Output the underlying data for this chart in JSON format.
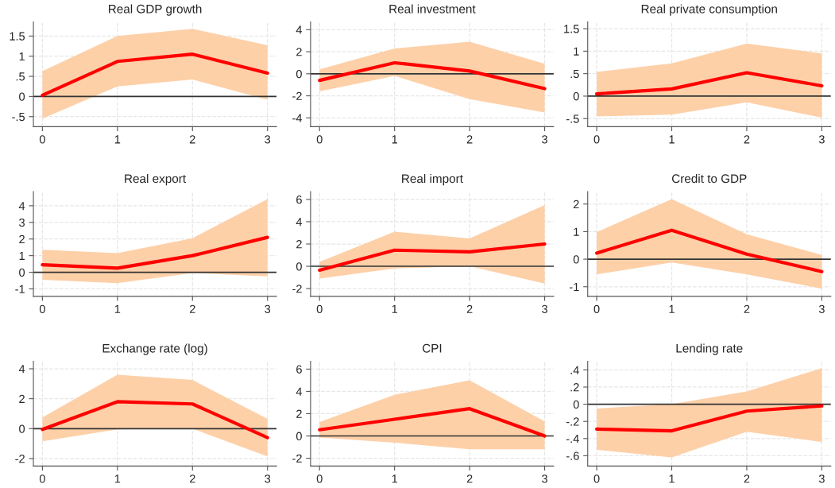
{
  "chart_data": [
    {
      "type": "line",
      "title": "Real GDP growth",
      "x": [
        0,
        1,
        2,
        3
      ],
      "xlim": [
        -0.12,
        3.12
      ],
      "xticks": [
        0,
        1,
        2,
        3
      ],
      "ylim": [
        -0.75,
        1.85
      ],
      "yticks": [
        {
          "value": -0.5,
          "label": "-.5"
        },
        0,
        {
          "value": 0.5,
          "label": ".5"
        },
        1,
        1.5
      ],
      "grid": true,
      "line_style": "solid",
      "series": [
        {
          "color": "#ff0000",
          "values": [
            0.03,
            0.87,
            1.05,
            0.58
          ],
          "lower": [
            -0.55,
            0.25,
            0.42,
            -0.08
          ],
          "upper": [
            0.63,
            1.5,
            1.68,
            1.27
          ]
        }
      ],
      "ref_lines": [
        {
          "axis": "y",
          "value": 0,
          "color": "#333333"
        }
      ]
    },
    {
      "type": "line",
      "title": "Real investment",
      "x": [
        0,
        1,
        2,
        3
      ],
      "xlim": [
        -0.12,
        3.12
      ],
      "xticks": [
        0,
        1,
        2,
        3
      ],
      "ylim": [
        -4.8,
        4.7
      ],
      "yticks": [
        -4,
        -2,
        0,
        2,
        4
      ],
      "grid": true,
      "line_style": "solid",
      "series": [
        {
          "color": "#ff0000",
          "values": [
            -0.6,
            1.0,
            0.25,
            -1.35
          ],
          "lower": [
            -1.6,
            -0.2,
            -2.3,
            -3.5
          ],
          "upper": [
            0.4,
            2.3,
            2.9,
            0.9
          ]
        }
      ],
      "ref_lines": [
        {
          "axis": "y",
          "value": 0,
          "color": "#333333"
        }
      ]
    },
    {
      "type": "line",
      "title": "Real private consumption",
      "x": [
        0,
        1,
        2,
        3
      ],
      "xlim": [
        -0.12,
        3.12
      ],
      "xticks": [
        0,
        1,
        2,
        3
      ],
      "ylim": [
        -0.68,
        1.65
      ],
      "yticks": [
        {
          "value": -0.5,
          "label": "-.5"
        },
        0,
        {
          "value": 0.5,
          "label": ".5"
        },
        1,
        1.5
      ],
      "grid": true,
      "line_style": "solid",
      "series": [
        {
          "color": "#ff0000",
          "values": [
            0.05,
            0.16,
            0.52,
            0.23
          ],
          "lower": [
            -0.45,
            -0.41,
            -0.14,
            -0.48
          ],
          "upper": [
            0.54,
            0.73,
            1.17,
            0.95
          ]
        }
      ],
      "ref_lines": [
        {
          "axis": "y",
          "value": 0,
          "color": "#333333"
        }
      ]
    },
    {
      "type": "line",
      "title": "Real export",
      "x": [
        0,
        1,
        2,
        3
      ],
      "xlim": [
        -0.12,
        3.12
      ],
      "xticks": [
        0,
        1,
        2,
        3
      ],
      "ylim": [
        -1.45,
        4.85
      ],
      "yticks": [
        -1,
        0,
        1,
        2,
        3,
        4
      ],
      "grid": true,
      "line_style": "solid",
      "series": [
        {
          "color": "#ff0000",
          "values": [
            0.45,
            0.25,
            1.0,
            2.1
          ],
          "lower": [
            -0.45,
            -0.65,
            -0.05,
            -0.25
          ],
          "upper": [
            1.35,
            1.15,
            2.05,
            4.4
          ]
        }
      ],
      "ref_lines": [
        {
          "axis": "y",
          "value": 0,
          "color": "#333333"
        }
      ]
    },
    {
      "type": "line",
      "title": "Real import",
      "x": [
        0,
        1,
        2,
        3
      ],
      "xlim": [
        -0.12,
        3.12
      ],
      "xticks": [
        0,
        1,
        2,
        3
      ],
      "ylim": [
        -2.7,
        6.7
      ],
      "yticks": [
        -2,
        0,
        2,
        4,
        6
      ],
      "grid": true,
      "line_style": "solid",
      "series": [
        {
          "color": "#ff0000",
          "values": [
            -0.35,
            1.45,
            1.3,
            2.0
          ],
          "lower": [
            -1.1,
            -0.2,
            0.0,
            -1.55
          ],
          "upper": [
            0.4,
            3.1,
            2.5,
            5.5
          ]
        }
      ],
      "ref_lines": [
        {
          "axis": "y",
          "value": 0,
          "color": "#333333"
        }
      ]
    },
    {
      "type": "line",
      "title": "Credit to GDP",
      "x": [
        0,
        1,
        2,
        3
      ],
      "xlim": [
        -0.12,
        3.12
      ],
      "xticks": [
        0,
        1,
        2,
        3
      ],
      "ylim": [
        -1.35,
        2.45
      ],
      "yticks": [
        -1,
        0,
        1,
        2
      ],
      "grid": true,
      "line_style": "solid",
      "series": [
        {
          "color": "#ff0000",
          "values": [
            0.22,
            1.05,
            0.18,
            -0.45
          ],
          "lower": [
            -0.55,
            -0.12,
            -0.55,
            -1.07
          ],
          "upper": [
            0.98,
            2.18,
            0.9,
            0.15
          ]
        }
      ],
      "ref_lines": [
        {
          "axis": "y",
          "value": 0,
          "color": "#333333"
        }
      ]
    },
    {
      "type": "line",
      "title": "Exchange rate (log)",
      "x": [
        0,
        1,
        2,
        3
      ],
      "xlim": [
        -0.12,
        3.12
      ],
      "xticks": [
        0,
        1,
        2,
        3
      ],
      "ylim": [
        -2.5,
        4.5
      ],
      "yticks": [
        -2,
        0,
        2,
        4
      ],
      "grid": true,
      "line_style": "solid",
      "series": [
        {
          "color": "#ff0000",
          "values": [
            -0.05,
            1.8,
            1.65,
            -0.6
          ],
          "lower": [
            -0.85,
            -0.05,
            0.0,
            -1.85
          ],
          "upper": [
            0.75,
            3.6,
            3.25,
            0.65
          ]
        }
      ],
      "ref_lines": [
        {
          "axis": "y",
          "value": 0,
          "color": "#333333"
        }
      ]
    },
    {
      "type": "line",
      "title": "CPI",
      "x": [
        0,
        1,
        2,
        3
      ],
      "xlim": [
        -0.12,
        3.12
      ],
      "xticks": [
        0,
        1,
        2,
        3
      ],
      "ylim": [
        -2.7,
        6.7
      ],
      "yticks": [
        -2,
        0,
        2,
        4,
        6
      ],
      "grid": true,
      "line_style": "solid",
      "series": [
        {
          "color": "#ff0000",
          "values": [
            0.55,
            1.5,
            2.45,
            0.0
          ],
          "lower": [
            -0.15,
            -0.6,
            -1.2,
            -1.2
          ],
          "upper": [
            1.25,
            3.7,
            5.0,
            1.3
          ]
        }
      ],
      "ref_lines": [
        {
          "axis": "y",
          "value": 0,
          "color": "#333333"
        }
      ]
    },
    {
      "type": "line",
      "title": "Lending rate",
      "x": [
        0,
        1,
        2,
        3
      ],
      "xlim": [
        -0.12,
        3.12
      ],
      "xticks": [
        0,
        1,
        2,
        3
      ],
      "ylim": [
        -0.72,
        0.5
      ],
      "yticks": [
        {
          "value": -0.6,
          "label": "-.6"
        },
        {
          "value": -0.4,
          "label": "-.4"
        },
        {
          "value": -0.2,
          "label": "-.2"
        },
        0,
        {
          "value": 0.2,
          "label": ".2"
        },
        {
          "value": 0.4,
          "label": ".4"
        }
      ],
      "grid": true,
      "line_style": "solid",
      "series": [
        {
          "color": "#ff0000",
          "values": [
            -0.29,
            -0.31,
            -0.08,
            -0.02
          ],
          "lower": [
            -0.53,
            -0.62,
            -0.32,
            -0.44
          ],
          "upper": [
            -0.05,
            0.0,
            0.15,
            0.42
          ]
        }
      ],
      "ref_lines": [
        {
          "axis": "y",
          "value": 0,
          "color": "#333333"
        }
      ]
    }
  ]
}
